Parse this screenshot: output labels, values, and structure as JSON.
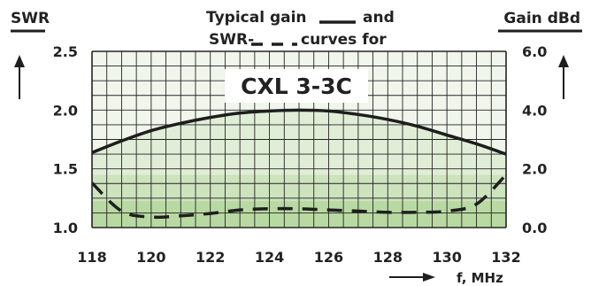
{
  "chart_data": {
    "type": "line",
    "title": {
      "line1_prefix": "Typical gain",
      "line1_suffix": "and",
      "line2_prefix": "SWR-",
      "line2_suffix": "curves for"
    },
    "model_label": "CXL 3-3C",
    "x": [
      118,
      119,
      120,
      121,
      122,
      123,
      124,
      125,
      126,
      127,
      128,
      129,
      130,
      131,
      132
    ],
    "x_ticks": [
      "118",
      "120",
      "122",
      "124",
      "126",
      "128",
      "130",
      "132"
    ],
    "xlim": [
      118,
      132
    ],
    "xlabel": "f, MHz",
    "y_left": {
      "label": "SWR",
      "ticks": [
        "2.5",
        "2.0",
        "1.5",
        "1.0"
      ],
      "lim": [
        1.0,
        2.5
      ]
    },
    "y_right": {
      "label": "Gain dBd",
      "ticks": [
        "6.0",
        "4.0",
        "2.0",
        "0.0"
      ],
      "lim": [
        0.0,
        6.0
      ]
    },
    "series": [
      {
        "axis": "right",
        "style": "solid",
        "values": [
          2.55,
          2.95,
          3.3,
          3.55,
          3.75,
          3.9,
          3.97,
          4.0,
          3.97,
          3.85,
          3.68,
          3.45,
          3.15,
          2.85,
          2.5
        ]
      },
      {
        "axis": "left",
        "style": "dashed",
        "values": [
          1.38,
          1.14,
          1.09,
          1.1,
          1.12,
          1.15,
          1.16,
          1.16,
          1.15,
          1.14,
          1.13,
          1.13,
          1.14,
          1.2,
          1.45
        ]
      }
    ],
    "grid": true,
    "colors": {
      "plot_background": "#f1f6ec",
      "fill_light": "#e1eed7",
      "fill_mid": "#cde3bd",
      "fill_dark": "#b9d9a2",
      "grid_line": "#232323",
      "curve": "#1e1e1e",
      "axis": "#1e1e1e",
      "label_box": "#ffffff"
    }
  }
}
